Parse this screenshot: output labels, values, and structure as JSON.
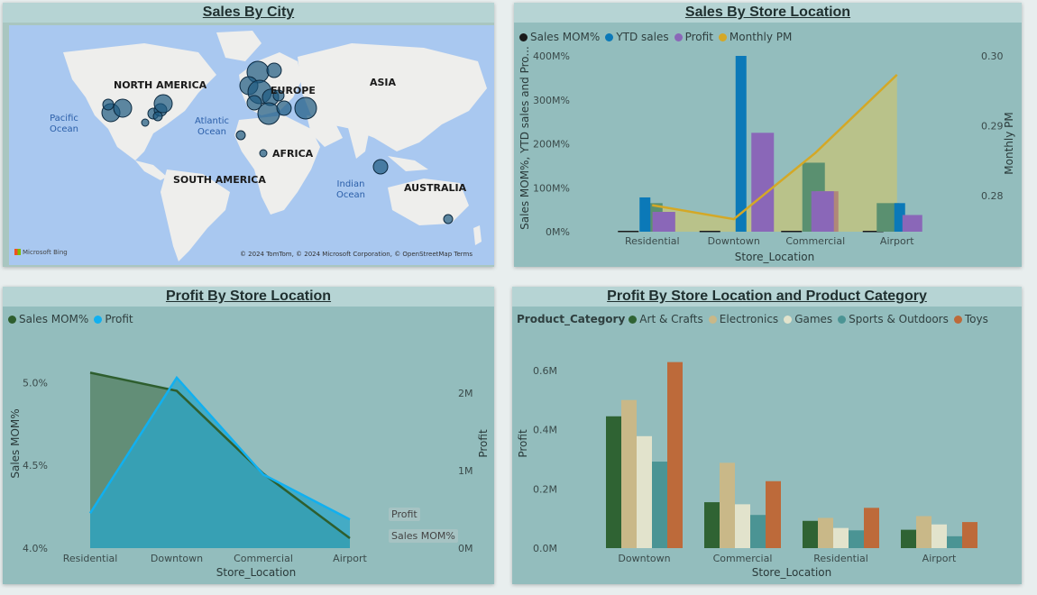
{
  "colors": {
    "panel_bg": "#93bdbd",
    "title_bg": "#b6d4d4",
    "dark_green": "#2e5e2e",
    "yellow": "#d4a826",
    "blue": "#0b79b8",
    "purple": "#8a67b8",
    "mid_green": "#5a9070",
    "rose": "#b08878",
    "cyan": "#11b0f0"
  },
  "panels": {
    "map_title": "Sales By City",
    "sales_title": "Sales By Store Location",
    "profit_title": "Profit By Store Location",
    "category_title": "Profit By Store Location and Product Category"
  },
  "map": {
    "labels": {
      "north_america": "NORTH AMERICA",
      "europe": "EUROPE",
      "asia": "ASIA",
      "africa": "AFRICA",
      "south_america": "SOUTH AMERICA",
      "australia": "AUSTRALIA"
    },
    "oceans": {
      "pacific": "Pacific Ocean",
      "atlantic": "Atlantic Ocean",
      "indian": "Indian Ocean"
    },
    "bing": "Microsoft Bing",
    "copyright": "© 2024 TomTom, © 2024 Microsoft Corporation, © OpenStreetMap  Terms"
  },
  "sales_legend": {
    "items": [
      {
        "label": "Sales MOM%",
        "color": "#1a1a1a"
      },
      {
        "label": "YTD sales",
        "color": "#0b79b8"
      },
      {
        "label": "Profit",
        "color": "#8a67b8"
      },
      {
        "label": "Monthly PM",
        "color": "#d4a826"
      }
    ]
  },
  "profit_legend": {
    "items": [
      {
        "label": "Sales MOM%",
        "color": "#2e5e2e"
      },
      {
        "label": "Profit",
        "color": "#11b0f0"
      }
    ]
  },
  "category_legend": {
    "title": "Product_Category",
    "items": [
      {
        "label": "Art & Crafts",
        "color": "#2f6333"
      },
      {
        "label": "Electronics",
        "color": "#c9b888"
      },
      {
        "label": "Games",
        "color": "#e2e3cc"
      },
      {
        "label": "Sports & Outdoors",
        "color": "#4b9494"
      },
      {
        "label": "Toys",
        "color": "#bd6a3a"
      }
    ]
  },
  "tooltips": {
    "profit": "Profit",
    "sales_mom": "Sales MOM%"
  },
  "chart_data": [
    {
      "type": "bar",
      "title": "Sales By Store Location",
      "categories": [
        "Residential",
        "Downtown",
        "Commercial",
        "Airport"
      ],
      "xlabel": "Store_Location",
      "ylabel": "Sales MOM%, YTD sales and Pro...",
      "y2label": "Monthly PM",
      "y_ticks": [
        "0M%",
        "100M%",
        "200M%",
        "300M%",
        "400M%"
      ],
      "y2_ticks": [
        "0.28",
        "0.29",
        "0.30"
      ],
      "ylim": [
        0,
        400
      ],
      "y2lim": [
        0.2748,
        0.3
      ],
      "series": [
        {
          "name": "Sales MOM%",
          "axis": "left",
          "values": [
            0,
            0,
            0,
            0
          ]
        },
        {
          "name": "YTD sales",
          "axis": "left",
          "values": [
            78,
            400,
            0,
            65
          ]
        },
        {
          "name": "Profit",
          "axis": "left",
          "values": [
            45,
            225,
            92,
            38
          ]
        },
        {
          "name": "",
          "axis": "left",
          "values": [
            65,
            0,
            157,
            65
          ]
        },
        {
          "name": "",
          "axis": "left",
          "values": [
            45,
            0,
            92,
            0
          ]
        },
        {
          "name": "Monthly PM",
          "axis": "right",
          "type": "area-line",
          "values": [
            0.2786,
            0.2766,
            0.2861,
            0.2973
          ]
        }
      ]
    },
    {
      "type": "area",
      "title": "Profit By Store Location",
      "categories": [
        "Residential",
        "Downtown",
        "Commercial",
        "Airport"
      ],
      "xlabel": "Store_Location",
      "ylabel": "Sales MOM%",
      "y2label": "Profit",
      "y_ticks": [
        "4.0%",
        "4.5%",
        "5.0%"
      ],
      "y2_ticks": [
        "0M",
        "1M",
        "2M"
      ],
      "ylim": [
        4.0,
        5.1
      ],
      "y2lim": [
        0,
        2.35
      ],
      "series": [
        {
          "name": "Sales MOM%",
          "axis": "left",
          "values": [
            5.06,
            4.95,
            4.45,
            4.06
          ]
        },
        {
          "name": "Profit",
          "axis": "right",
          "values": [
            0.45,
            2.2,
            0.95,
            0.37
          ]
        }
      ]
    },
    {
      "type": "bar",
      "title": "Profit By Store Location and Product Category",
      "categories": [
        "Downtown",
        "Commercial",
        "Residential",
        "Airport"
      ],
      "xlabel": "Store_Location",
      "ylabel": "Profit",
      "y_ticks": [
        "0.0M",
        "0.2M",
        "0.4M",
        "0.6M"
      ],
      "ylim": [
        0,
        0.7
      ],
      "series": [
        {
          "name": "Art & Crafts",
          "values": [
            0.445,
            0.155,
            0.092,
            0.062
          ]
        },
        {
          "name": "Electronics",
          "values": [
            0.5,
            0.288,
            0.102,
            0.108
          ]
        },
        {
          "name": "Games",
          "values": [
            0.378,
            0.148,
            0.068,
            0.08
          ]
        },
        {
          "name": "Sports & Outdoors",
          "values": [
            0.292,
            0.112,
            0.06,
            0.04
          ]
        },
        {
          "name": "Toys",
          "values": [
            0.628,
            0.226,
            0.136,
            0.088
          ]
        }
      ]
    }
  ]
}
